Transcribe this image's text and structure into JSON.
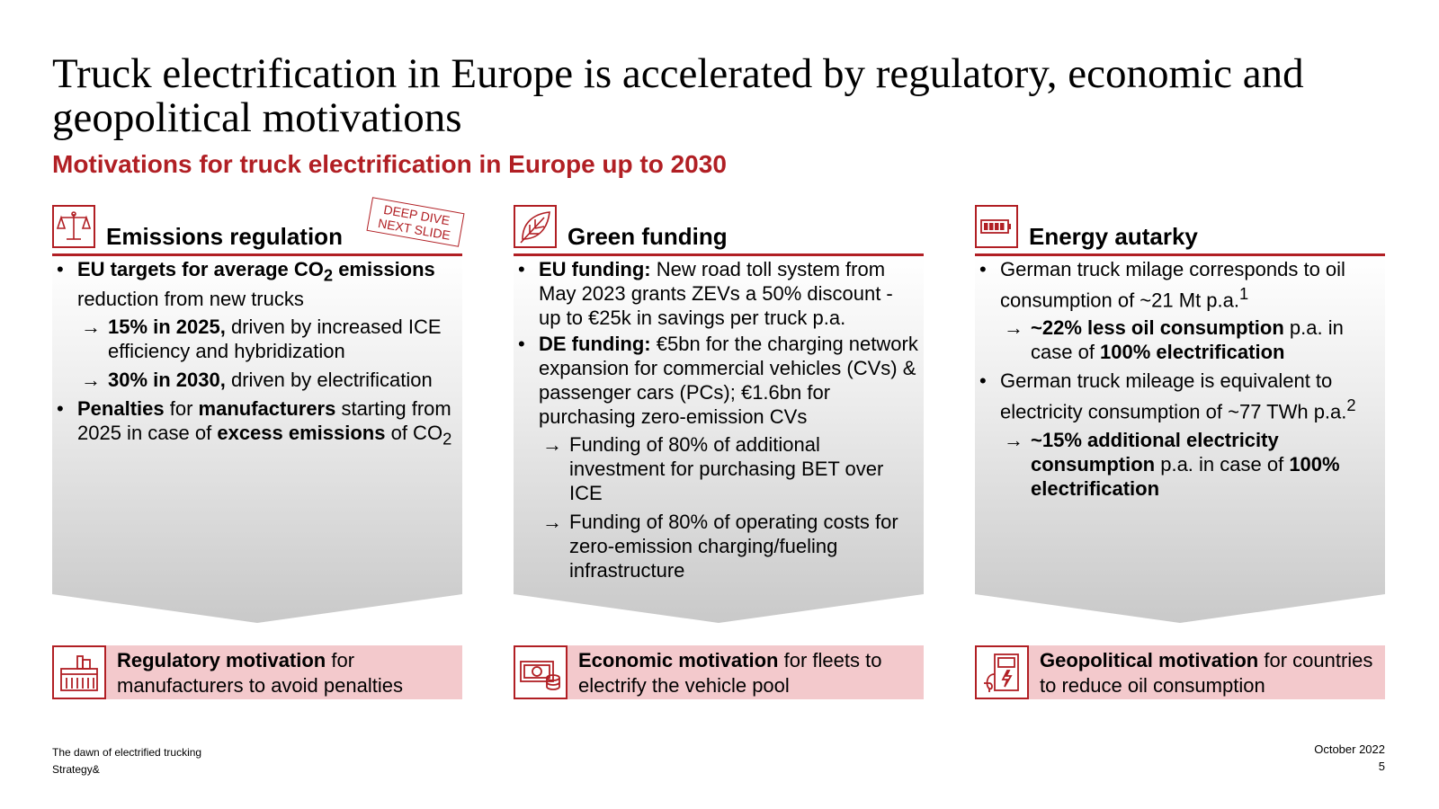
{
  "title": "Truck electrification in Europe is accelerated by regulatory, economic and geopolitical motivations",
  "subtitle": "Motivations for truck electrification in Europe up to 2030",
  "columns": [
    {
      "icon": "scale-icon",
      "heading": "Emissions regulation",
      "stamp": [
        "DEEP DIVE",
        "NEXT SLIDE"
      ],
      "b1": {
        "t1": "EU targets for average CO",
        "sub": "2",
        "t2": " emissions",
        "t3": " reduction from new trucks"
      },
      "s1": {
        "b": "15% in 2025,",
        "t": " driven by increased ICE efficiency and hybridization"
      },
      "s2": {
        "b": "30% in 2030,",
        "t": " driven by electrification"
      },
      "b2": {
        "b1": "Penalties",
        "t1": " for ",
        "b2": "manufacturers",
        "t2": " starting from 2025 in case of ",
        "b3": "excess emissions",
        "t3": " of CO",
        "sub": "2"
      },
      "footer_icon": "factory-icon",
      "footer": {
        "b": "Regulatory motivation",
        "t": " for manufacturers to avoid penalties"
      }
    },
    {
      "icon": "leaf-icon",
      "heading": "Green funding",
      "b1": {
        "b": "EU funding:",
        "t": " New road toll system from May 2023 grants ZEVs a 50% discount - up to €25k in savings per truck p.a."
      },
      "b2": {
        "b": "DE funding:",
        "t": " €5bn for the charging network expansion for commercial vehicles (CVs) & passenger cars (PCs); €1.6bn for purchasing zero-emission CVs"
      },
      "s1": "Funding of 80% of additional investment for purchasing BET over ICE",
      "s2": "Funding of 80% of operating costs for zero-emission charging/fueling infrastructure",
      "footer_icon": "money-icon",
      "footer": {
        "b": "Economic motivation",
        "t": " for fleets to electrify the vehicle pool"
      }
    },
    {
      "icon": "battery-icon",
      "heading": "Energy autarky",
      "b1": {
        "t": "German truck milage corresponds to oil consumption of ~21 Mt p.a.",
        "sup": "1"
      },
      "s1": {
        "b1": "~22% less oil consumption",
        "t1": " p.a. in case of ",
        "b2": "100% electrification"
      },
      "b2": {
        "t": "German truck mileage is equivalent to electricity consumption of ~77 TWh p.a.",
        "sup": "2"
      },
      "s2": {
        "b1": "~15% additional electricity consumption",
        "t1": " p.a. in case of ",
        "b2": "100% electrification"
      },
      "footer_icon": "fuel-charger-icon",
      "footer": {
        "b": "Geopolitical motivation",
        "t": " for countries to reduce oil consumption"
      }
    }
  ],
  "footer": {
    "left_line1": "The dawn of electrified trucking",
    "left_line2": "Strategy&",
    "date": "October 2022",
    "page": "5"
  },
  "colors": {
    "accent": "#b11f24",
    "light_red": "#f3c9cc",
    "gray": "#c9c9c9"
  }
}
